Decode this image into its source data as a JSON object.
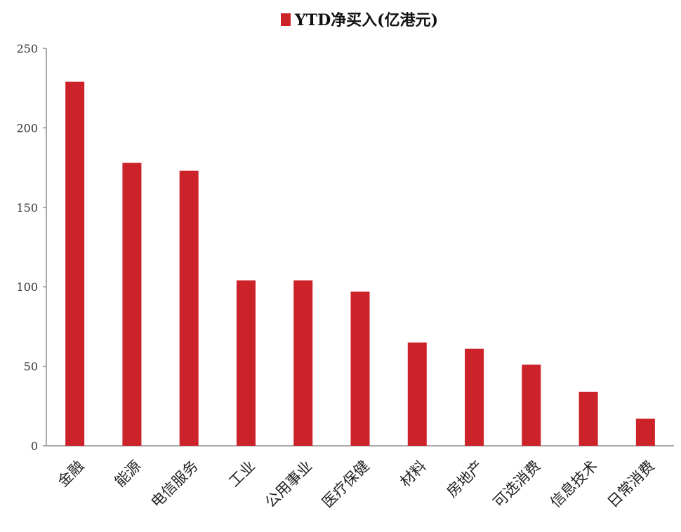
{
  "chart_data": {
    "type": "bar",
    "title": "",
    "xlabel": "",
    "ylabel": "",
    "categories": [
      "金融",
      "能源",
      "电信服务",
      "工业",
      "公用事业",
      "医疗保健",
      "材料",
      "房地产",
      "可选消费",
      "信息技术",
      "日常消费"
    ],
    "series": [
      {
        "name": "YTD净买入(亿港元)",
        "color": "#cc2229",
        "values": [
          229,
          178,
          173,
          104,
          104,
          97,
          65,
          61,
          51,
          34,
          17
        ]
      }
    ],
    "ylim": [
      0,
      250
    ],
    "yticks": [
      0,
      50,
      100,
      150,
      200,
      250
    ],
    "grid": false,
    "legend": "top-center"
  }
}
